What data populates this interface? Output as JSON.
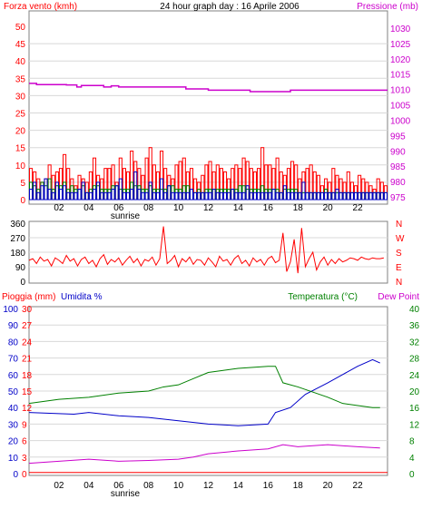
{
  "title": "24 hour graph day : 16 Aprile 2006",
  "hour_ticks": [
    "02",
    "04",
    "06",
    "08",
    "10",
    "12",
    "14",
    "16",
    "18",
    "20",
    "22"
  ],
  "sunrise_label": "sunrise",
  "colors": {
    "red": "#ff0000",
    "blue": "#0000c8",
    "green": "#008000",
    "magenta": "#cc00cc",
    "black": "#000000"
  },
  "chart_data": [
    {
      "type": "bar",
      "ylabel_left": "Forza vento (kmh)",
      "ylabel_right": "Pressione (mb)",
      "ylim_left": [
        0,
        50
      ],
      "ylim_right": [
        975,
        1030
      ],
      "yticks_left": [
        "0",
        "5",
        "10",
        "15",
        "20",
        "25",
        "30",
        "35",
        "40",
        "45",
        "50"
      ],
      "yticks_right": [
        "975",
        "980",
        "985",
        "990",
        "995",
        "1000",
        "1005",
        "1010",
        "1015",
        "1020",
        "1025",
        "1030"
      ],
      "x_range_hours": [
        0,
        24
      ],
      "series": [
        {
          "kind": "line",
          "axis": "right",
          "color": "magenta",
          "points": [
            [
              0,
              1012
            ],
            [
              0.5,
              1011.6
            ],
            [
              2.5,
              1011.5
            ],
            [
              3.2,
              1010.8
            ],
            [
              3.5,
              1011.3
            ],
            [
              4.5,
              1011.3
            ],
            [
              5,
              1010.8
            ],
            [
              5.5,
              1011.2
            ],
            [
              6,
              1010.8
            ],
            [
              10,
              1010.8
            ],
            [
              10.5,
              1010.2
            ],
            [
              11.5,
              1010.2
            ],
            [
              12,
              1009.8
            ],
            [
              14,
              1009.8
            ],
            [
              14.8,
              1009.3
            ],
            [
              17,
              1009.3
            ],
            [
              17.5,
              1009.8
            ],
            [
              24,
              1009.8
            ]
          ]
        },
        {
          "kind": "bars",
          "axis": "left",
          "color": "red",
          "samples_per_hour": 4,
          "values": [
            9,
            8,
            6,
            5,
            6,
            10,
            7,
            8,
            9,
            13,
            9,
            6,
            4,
            7,
            6,
            5,
            8,
            12,
            7,
            6,
            9,
            9,
            10,
            5,
            12,
            9,
            8,
            14,
            11,
            9,
            7,
            12,
            15,
            10,
            8,
            14,
            9,
            7,
            6,
            10,
            11,
            12,
            8,
            9,
            6,
            5,
            7,
            10,
            11,
            8,
            10,
            9,
            8,
            6,
            9,
            10,
            9,
            12,
            11,
            9,
            8,
            9,
            15,
            10,
            10,
            9,
            12,
            8,
            7,
            9,
            11,
            10,
            6,
            8,
            9,
            10,
            8,
            7,
            4,
            6,
            5,
            9,
            7,
            6,
            5,
            8,
            5,
            4,
            7,
            6,
            5,
            4,
            3,
            6,
            5,
            4
          ]
        },
        {
          "kind": "bars",
          "axis": "left",
          "color": "green",
          "samples_per_hour": 4,
          "values": [
            5,
            4,
            3,
            5,
            4,
            6,
            3,
            4,
            4,
            5,
            3,
            4,
            3,
            3,
            4,
            2,
            3,
            4,
            4,
            3,
            3,
            3,
            4,
            4,
            3,
            3,
            3,
            5,
            4,
            4,
            3,
            3,
            4,
            3,
            3,
            3,
            3,
            4,
            4,
            3,
            3,
            4,
            4,
            3,
            2,
            3,
            2,
            3,
            3,
            3,
            3,
            3,
            3,
            3,
            3,
            3,
            4,
            4,
            3,
            3,
            3,
            3,
            4,
            3,
            3,
            3,
            3,
            2,
            3,
            3,
            3,
            3,
            2,
            2,
            2,
            2,
            2,
            2,
            2,
            3,
            2,
            2,
            2,
            2,
            2,
            2,
            2,
            2,
            2,
            2,
            2,
            2,
            2,
            2,
            2,
            2
          ]
        },
        {
          "kind": "bars",
          "axis": "left",
          "color": "blue",
          "samples_per_hour": 4,
          "values": [
            3,
            5,
            2,
            4,
            6,
            3,
            2,
            5,
            3,
            4,
            2,
            2,
            2,
            3,
            5,
            2,
            2,
            3,
            5,
            2,
            2,
            2,
            3,
            4,
            6,
            2,
            2,
            3,
            8,
            3,
            2,
            2,
            5,
            2,
            2,
            6,
            2,
            4,
            2,
            2,
            2,
            2,
            2,
            3,
            2,
            2,
            2,
            2,
            2,
            3,
            2,
            2,
            2,
            2,
            3,
            2,
            2,
            2,
            4,
            2,
            2,
            2,
            2,
            2,
            2,
            3,
            2,
            2,
            4,
            2,
            2,
            2,
            2,
            5,
            2,
            2,
            2,
            2,
            2,
            2,
            2,
            2,
            3,
            2,
            2,
            2,
            2,
            2,
            2,
            2,
            2,
            2,
            2,
            2,
            2,
            2
          ]
        }
      ]
    },
    {
      "type": "line",
      "ylabel_right": "N W S E N",
      "yticks_left": [
        "0",
        "90",
        "180",
        "270",
        "360"
      ],
      "yticks_right": [
        "N",
        "E",
        "S",
        "W",
        "N"
      ],
      "ylim_left": [
        0,
        360
      ],
      "x_range_hours": [
        0,
        24
      ],
      "series": [
        {
          "color": "red",
          "samples_per_hour": 4,
          "values": [
            130,
            140,
            110,
            150,
            125,
            135,
            95,
            145,
            130,
            110,
            160,
            125,
            140,
            95,
            135,
            150,
            110,
            130,
            90,
            140,
            165,
            105,
            135,
            120,
            145,
            100,
            130,
            155,
            115,
            140,
            95,
            135,
            125,
            150,
            100,
            140,
            340,
            110,
            130,
            160,
            90,
            140,
            120,
            150,
            105,
            135,
            130,
            100,
            145,
            120,
            90,
            155,
            125,
            135,
            100,
            140,
            160,
            110,
            130,
            95,
            145,
            120,
            135,
            100,
            140,
            155,
            115,
            130,
            300,
            60,
            120,
            260,
            50,
            330,
            90,
            140,
            180,
            70,
            120,
            150,
            100,
            135,
            110,
            140,
            120,
            130,
            145,
            140,
            130,
            150,
            140,
            135,
            145,
            140,
            140,
            145
          ]
        }
      ]
    },
    {
      "type": "line",
      "ylabel_left_1": "Pioggia (mm)",
      "ylabel_left_2": "Umidita %",
      "ylabel_right_1": "Temperatura (°C)",
      "ylabel_right_2": "Dew Point",
      "yticks_humidity": [
        "0",
        "10",
        "20",
        "30",
        "40",
        "50",
        "60",
        "70",
        "80",
        "90",
        "100"
      ],
      "yticks_rain": [
        "0",
        "3",
        "6",
        "9",
        "12",
        "15",
        "18",
        "21",
        "24",
        "27",
        "30"
      ],
      "yticks_temp": [
        "0",
        "4",
        "8",
        "12",
        "16",
        "20",
        "24",
        "28",
        "32",
        "36",
        "40"
      ],
      "ylim_humidity": [
        0,
        100
      ],
      "ylim_rain": [
        0,
        30
      ],
      "ylim_temp": [
        0,
        40
      ],
      "x_range_hours": [
        0,
        24
      ],
      "series": [
        {
          "name": "Umidita %",
          "color": "blue",
          "axis": "humidity",
          "points": [
            [
              0,
              37
            ],
            [
              3,
              36
            ],
            [
              4,
              37
            ],
            [
              6,
              35
            ],
            [
              8,
              34
            ],
            [
              10,
              32
            ],
            [
              12,
              30
            ],
            [
              14,
              29
            ],
            [
              16,
              30
            ],
            [
              16.5,
              37
            ],
            [
              17.5,
              40
            ],
            [
              18.5,
              48
            ],
            [
              20,
              55
            ],
            [
              21,
              60
            ],
            [
              22,
              65
            ],
            [
              23,
              69
            ],
            [
              23.5,
              67
            ]
          ]
        },
        {
          "name": "Temperatura (°C)",
          "color": "green",
          "axis": "temp",
          "points": [
            [
              0,
              17
            ],
            [
              1,
              17.5
            ],
            [
              2,
              18
            ],
            [
              4,
              18.5
            ],
            [
              6,
              19.5
            ],
            [
              8,
              20
            ],
            [
              9,
              21
            ],
            [
              10,
              21.5
            ],
            [
              11,
              23
            ],
            [
              12,
              24.5
            ],
            [
              13,
              25
            ],
            [
              14,
              25.5
            ],
            [
              16,
              26
            ],
            [
              16.5,
              26
            ],
            [
              17,
              22
            ],
            [
              18,
              21
            ],
            [
              20,
              18.5
            ],
            [
              21,
              17
            ],
            [
              23,
              16
            ],
            [
              23.5,
              16
            ]
          ]
        },
        {
          "name": "Dew Point",
          "color": "magenta",
          "axis": "temp",
          "points": [
            [
              0,
              2.5
            ],
            [
              2,
              3
            ],
            [
              4,
              3.5
            ],
            [
              6,
              3
            ],
            [
              8,
              3.2
            ],
            [
              10,
              3.5
            ],
            [
              11,
              4
            ],
            [
              12,
              4.8
            ],
            [
              14,
              5.5
            ],
            [
              16,
              6
            ],
            [
              17,
              7
            ],
            [
              18,
              6.5
            ],
            [
              20,
              7
            ],
            [
              22,
              6.5
            ],
            [
              23.5,
              6.2
            ]
          ]
        },
        {
          "name": "Pioggia (mm)",
          "color": "red",
          "axis": "rain",
          "points": [
            [
              0,
              0.2
            ],
            [
              24,
              0.2
            ]
          ]
        }
      ]
    }
  ]
}
